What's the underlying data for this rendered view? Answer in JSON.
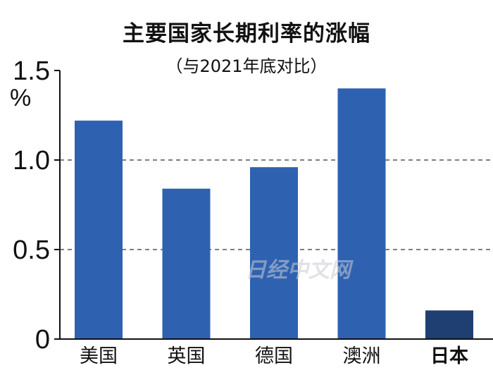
{
  "chart_data": {
    "type": "bar",
    "title": "主要国家长期利率的涨幅",
    "subtitle": "（与2021年底对比）",
    "unit": "%",
    "categories": [
      "美国",
      "英国",
      "德国",
      "澳洲",
      "日本"
    ],
    "highlight_category": "日本",
    "values": [
      1.22,
      0.84,
      0.96,
      1.4,
      0.16
    ],
    "ylim": [
      0,
      1.5
    ],
    "yticks": [
      0,
      0.5,
      1.0,
      1.5
    ],
    "ytick_labels": [
      "0",
      "0.5",
      "1.0",
      "1.5"
    ],
    "grid": "dashed horizontal at 0.5 and 1.0",
    "colors": {
      "bar": "#2e62b1",
      "highlight_bar": "#1f3f73",
      "grid": "#555555",
      "axis": "#111111"
    },
    "watermark": "日经中文网"
  }
}
